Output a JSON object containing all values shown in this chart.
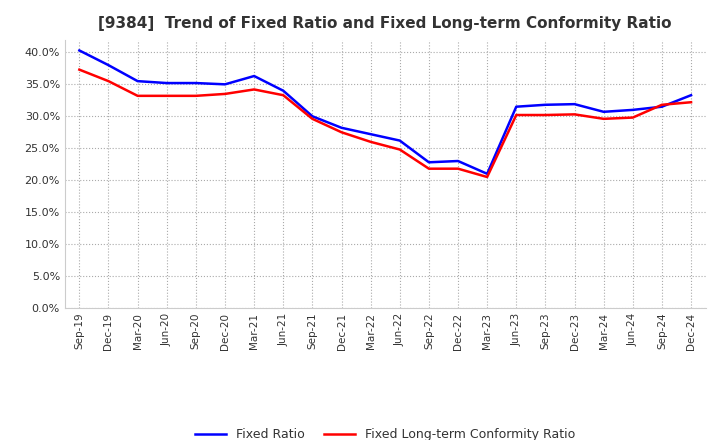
{
  "title": "[9384]  Trend of Fixed Ratio and Fixed Long-term Conformity Ratio",
  "x_labels": [
    "Sep-19",
    "Dec-19",
    "Mar-20",
    "Jun-20",
    "Sep-20",
    "Dec-20",
    "Mar-21",
    "Jun-21",
    "Sep-21",
    "Dec-21",
    "Mar-22",
    "Jun-22",
    "Sep-22",
    "Dec-22",
    "Mar-23",
    "Jun-23",
    "Sep-23",
    "Dec-23",
    "Mar-24",
    "Jun-24",
    "Sep-24",
    "Dec-24"
  ],
  "fixed_ratio": [
    0.403,
    0.38,
    0.355,
    0.352,
    0.352,
    0.35,
    0.363,
    0.34,
    0.3,
    0.282,
    0.272,
    0.262,
    0.228,
    0.23,
    0.21,
    0.315,
    0.318,
    0.319,
    0.307,
    0.31,
    0.315,
    0.333
  ],
  "fixed_lt_ratio": [
    0.373,
    0.355,
    0.332,
    0.332,
    0.332,
    0.335,
    0.342,
    0.333,
    0.296,
    0.275,
    0.26,
    0.248,
    0.218,
    0.218,
    0.205,
    0.302,
    0.302,
    0.303,
    0.296,
    0.298,
    0.318,
    0.322
  ],
  "ylim": [
    0.0,
    0.42
  ],
  "yticks": [
    0.0,
    0.05,
    0.1,
    0.15,
    0.2,
    0.25,
    0.3,
    0.35,
    0.4
  ],
  "line_color_fixed": "#0000FF",
  "line_color_lt": "#FF0000",
  "background_color": "#FFFFFF",
  "grid_color": "#AAAAAA",
  "legend_fixed": "Fixed Ratio",
  "legend_lt": "Fixed Long-term Conformity Ratio"
}
